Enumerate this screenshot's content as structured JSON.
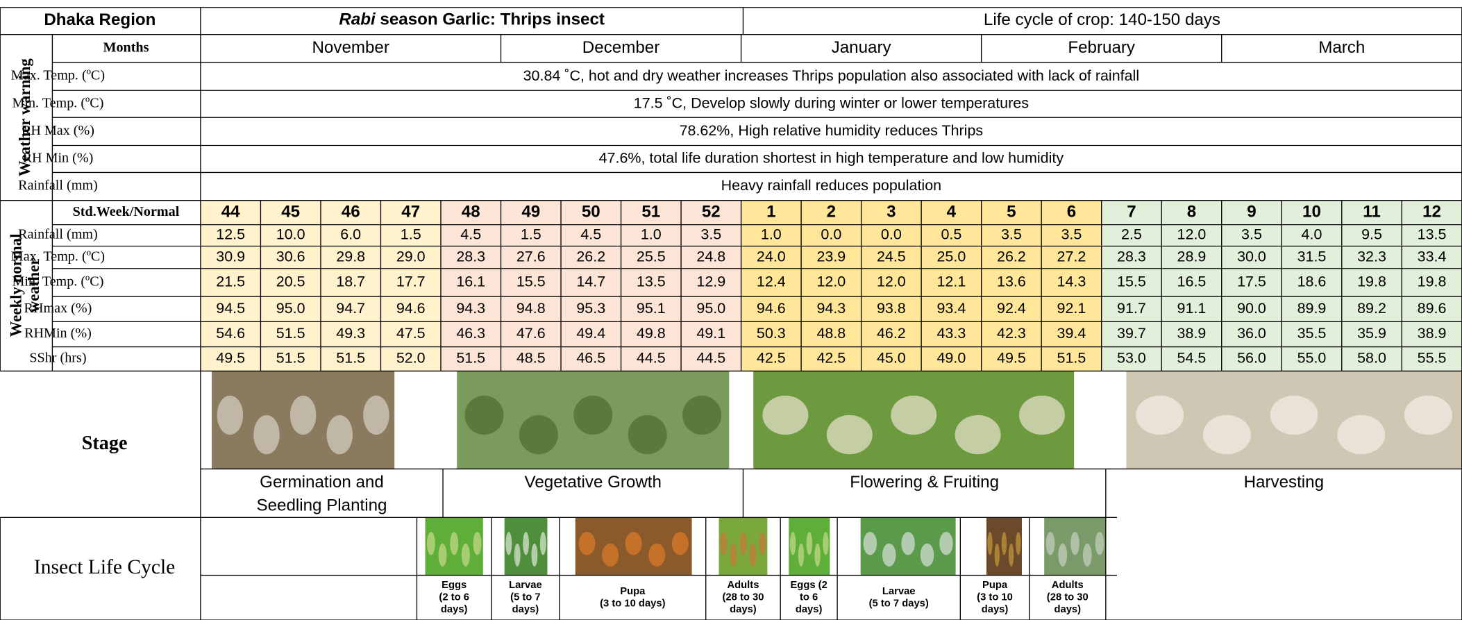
{
  "header": {
    "region": "Dhaka Region",
    "title_italic": "Rabi",
    "title": "season Garlic: Thrips insect",
    "life_cycle": "Life cycle of crop: 140-150 days"
  },
  "weather_warning": {
    "section_label": "Weather warning",
    "months_label": "Months",
    "months": [
      "November",
      "December",
      "January",
      "February",
      "March"
    ],
    "rows": [
      {
        "label": "Max. Temp. (ºC)",
        "text": "30.84 ˚C, hot and dry weather increases Thrips population also associated with lack of rainfall"
      },
      {
        "label": "Min. Temp. (ºC)",
        "text": "17.5 ˚C, Develop slowly during winter or lower temperatures"
      },
      {
        "label": "RH Max (%)",
        "text": "78.62%, High relative humidity reduces Thrips"
      },
      {
        "label": "RH Min (%)",
        "text": "47.6%, total life duration shortest in high temperature and low humidity"
      },
      {
        "label": "Rainfall (mm)",
        "text": "Heavy rainfall reduces population"
      }
    ]
  },
  "weekly": {
    "section_label": [
      "Weekly normal",
      "weather"
    ],
    "header_label": "Std.Week/Normal",
    "weeks": [
      44,
      45,
      46,
      47,
      48,
      49,
      50,
      51,
      52,
      1,
      2,
      3,
      4,
      5,
      6,
      7,
      8,
      9,
      10,
      11,
      12
    ],
    "rows": [
      {
        "label": "Rainfall (mm)",
        "values": [
          "12.5",
          "10.0",
          "6.0",
          "1.5",
          "4.5",
          "1.5",
          "4.5",
          "1.0",
          "3.5",
          "1.0",
          "0.0",
          "0.0",
          "0.5",
          "3.5",
          "3.5",
          "2.5",
          "12.0",
          "3.5",
          "4.0",
          "9.5",
          "13.5"
        ]
      },
      {
        "label": "Max. Temp. (ºC)",
        "values": [
          "30.9",
          "30.6",
          "29.8",
          "29.0",
          "28.3",
          "27.6",
          "26.2",
          "25.5",
          "24.8",
          "24.0",
          "23.9",
          "24.5",
          "25.0",
          "26.2",
          "27.2",
          "28.3",
          "28.9",
          "30.0",
          "31.5",
          "32.3",
          "33.4"
        ]
      },
      {
        "label": "Min. Temp. (ºC)",
        "values": [
          "21.5",
          "20.5",
          "18.7",
          "17.7",
          "16.1",
          "15.5",
          "14.7",
          "13.5",
          "12.9",
          "12.4",
          "12.0",
          "12.0",
          "12.1",
          "13.6",
          "14.3",
          "15.5",
          "16.5",
          "17.5",
          "18.6",
          "19.8",
          "19.8"
        ]
      },
      {
        "label": "RHmax (%)",
        "values": [
          "94.5",
          "95.0",
          "94.7",
          "94.6",
          "94.3",
          "94.8",
          "95.3",
          "95.1",
          "95.0",
          "94.6",
          "94.3",
          "93.8",
          "93.4",
          "92.4",
          "92.1",
          "91.7",
          "91.1",
          "90.0",
          "89.9",
          "89.2",
          "89.6"
        ]
      },
      {
        "label": "RHMin (%)",
        "values": [
          "54.6",
          "51.5",
          "49.3",
          "47.5",
          "46.3",
          "47.6",
          "49.4",
          "49.8",
          "49.1",
          "50.3",
          "48.8",
          "46.2",
          "43.3",
          "42.3",
          "39.4",
          "39.7",
          "38.9",
          "36.0",
          "35.5",
          "35.9",
          "38.9"
        ]
      },
      {
        "label": "SShr (hrs)",
        "values": [
          "49.5",
          "51.5",
          "51.5",
          "52.0",
          "51.5",
          "48.5",
          "46.5",
          "44.5",
          "44.5",
          "42.5",
          "42.5",
          "45.0",
          "49.0",
          "49.5",
          "51.5",
          "53.0",
          "54.5",
          "56.0",
          "55.0",
          "58.0",
          "55.5"
        ]
      }
    ]
  },
  "stage": {
    "label": "Stage",
    "stages": [
      [
        "Germination and",
        "Seedling Planting"
      ],
      [
        "Vegetative Growth"
      ],
      [
        "Flowering & Fruiting"
      ],
      [
        "Harvesting"
      ]
    ]
  },
  "insect": {
    "label": "Insect Life Cycle",
    "stages": [
      [
        "Eggs",
        "(2 to 6",
        "days)"
      ],
      [
        "Larvae",
        "(5 to 7",
        "days)"
      ],
      [
        "Pupa",
        "(3 to 10 days)"
      ],
      [
        "Adults",
        "(28 to 30",
        "days)"
      ],
      [
        "Eggs (2",
        "to 6",
        "days)"
      ],
      [
        "Larvae",
        "(5 to 7 days)"
      ],
      [
        "Pupa",
        "(3 to 10",
        "days)"
      ],
      [
        "Adults",
        "(28 to 30",
        "days)"
      ]
    ]
  }
}
